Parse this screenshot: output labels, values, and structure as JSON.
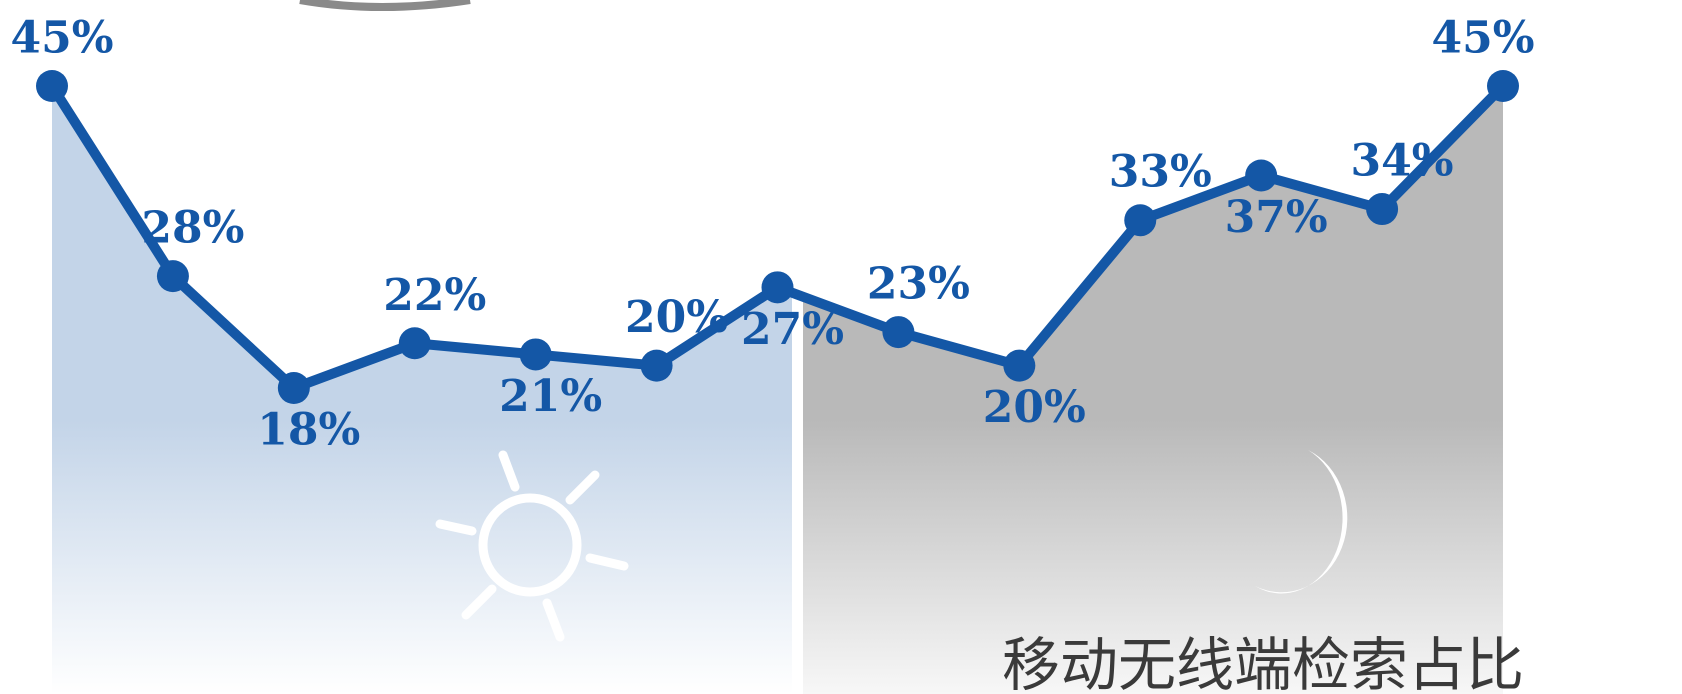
{
  "chart_data": {
    "type": "line",
    "title": "移动无线端检索占比",
    "series": [
      {
        "name": null,
        "color": "#1457a6",
        "values": [
          45,
          28,
          18,
          22,
          21,
          20,
          27,
          23,
          20,
          33,
          37,
          34,
          45
        ],
        "value_labels": [
          "45%",
          "28%",
          "18%",
          "22%",
          "21%",
          "20%",
          "27%",
          "23%",
          "20%",
          "33%",
          "37%",
          "34%",
          "45%"
        ]
      }
    ]
  }
}
